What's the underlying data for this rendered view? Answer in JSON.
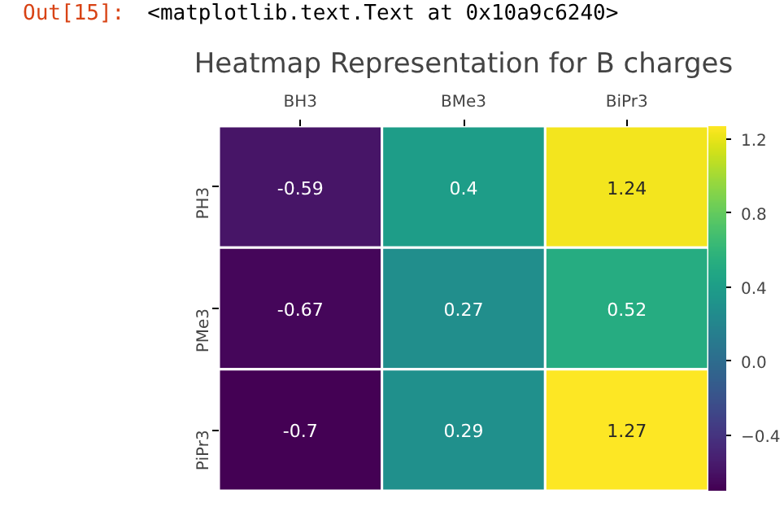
{
  "chart_data": {
    "type": "heatmap",
    "title": "Heatmap Representation for B charges",
    "annotations": [
      "Out[15]:",
      "<matplotlib.text.Text at 0x10a9c6240>"
    ],
    "categories": [
      "BH3",
      "BMe3",
      "BiPr3"
    ],
    "y_categories": [
      "PH3",
      "PMe3",
      "PiPr3"
    ],
    "cells": [
      [
        -0.59,
        0.4,
        1.24
      ],
      [
        -0.67,
        0.27,
        0.52
      ],
      [
        -0.7,
        0.29,
        1.27
      ]
    ],
    "data_labels": true,
    "clim": [
      -0.7,
      1.27
    ],
    "cticks": [
      -0.4,
      {
        "value": 0,
        "label": "0.0"
      },
      0.4,
      0.8,
      1.2
    ]
  }
}
